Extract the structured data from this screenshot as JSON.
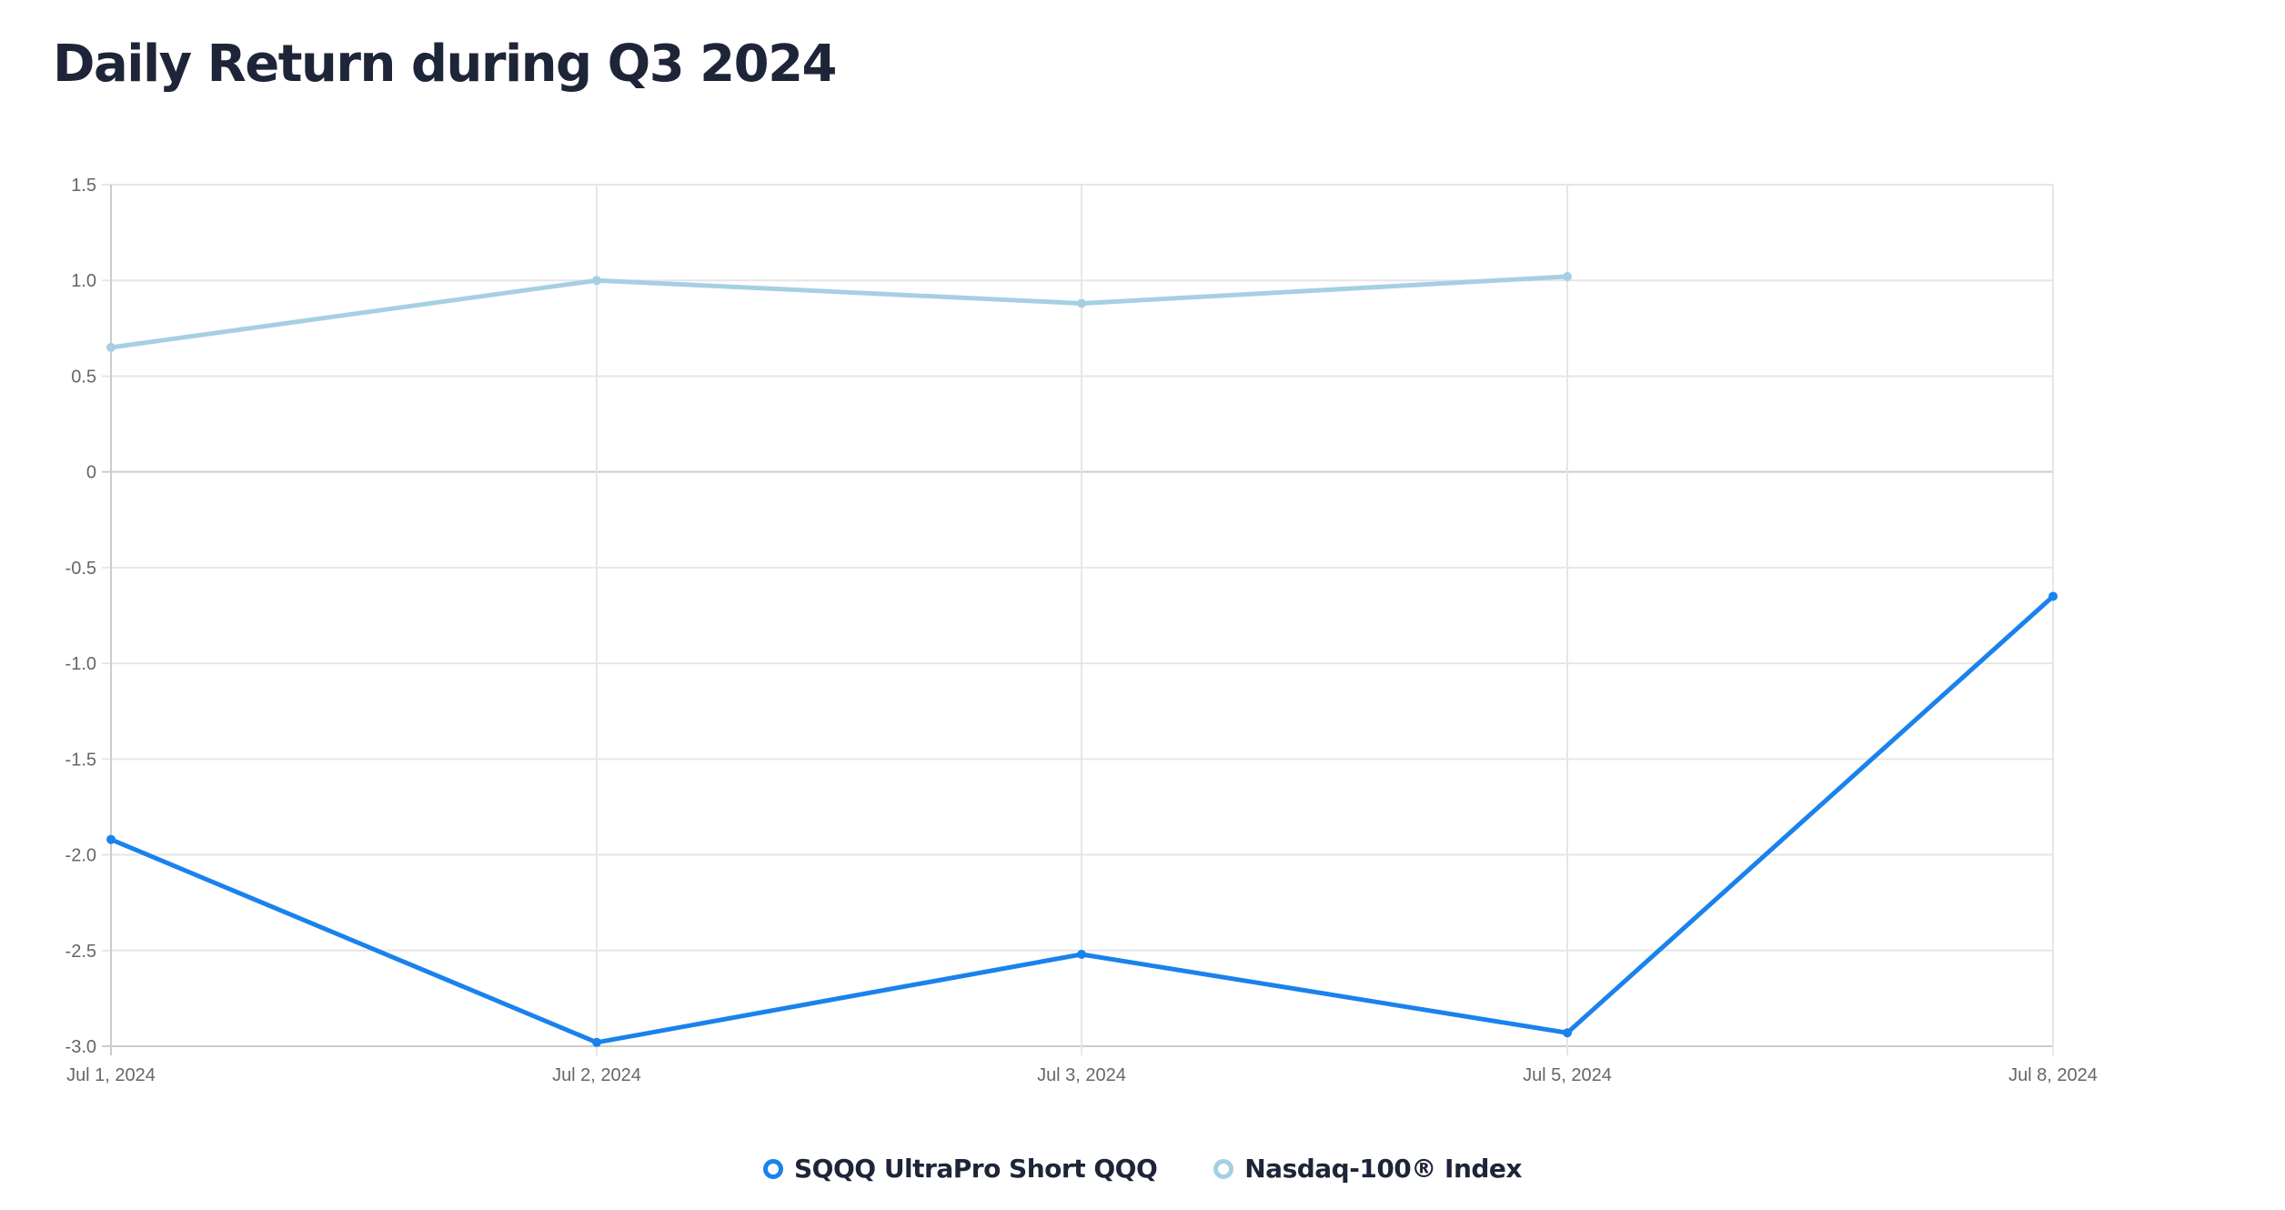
{
  "header": {
    "title": "Daily Return during Q3 2024"
  },
  "colors": {
    "sqqq": "#1a82ec",
    "nasdaq": "#a6cfe4",
    "grid": "#e6e6e6",
    "axis": "#cccccc",
    "tick_text": "#666666",
    "title": "#1e2538"
  },
  "legend": {
    "items": [
      {
        "label": "SQQQ UltraPro Short QQQ",
        "color": "#1a82ec",
        "icon": "circle-outline-icon"
      },
      {
        "label": "Nasdaq-100® Index",
        "color": "#a6cfe4",
        "icon": "circle-outline-icon"
      }
    ]
  },
  "chart_data": {
    "type": "line",
    "title": "Daily Return during Q3 2024",
    "xlabel": "",
    "ylabel": "",
    "categories": [
      "Jul 1, 2024",
      "Jul 2, 2024",
      "Jul 3, 2024",
      "Jul 5, 2024",
      "Jul 8, 2024"
    ],
    "series": [
      {
        "name": "SQQQ UltraPro Short QQQ",
        "color": "#1a82ec",
        "values": [
          -1.92,
          -2.98,
          -2.52,
          -2.93,
          -0.65
        ]
      },
      {
        "name": "Nasdaq-100® Index",
        "color": "#a6cfe4",
        "values": [
          0.65,
          1.0,
          0.88,
          1.02,
          null
        ]
      }
    ],
    "yticks": [
      "1.5",
      "1.0",
      "0.5",
      "0",
      "-0.5",
      "-1.0",
      "-1.5",
      "-2.0",
      "-2.5",
      "-3.0"
    ],
    "ylim": [
      -3.0,
      1.5
    ],
    "grid": true,
    "legend_position": "bottom"
  }
}
